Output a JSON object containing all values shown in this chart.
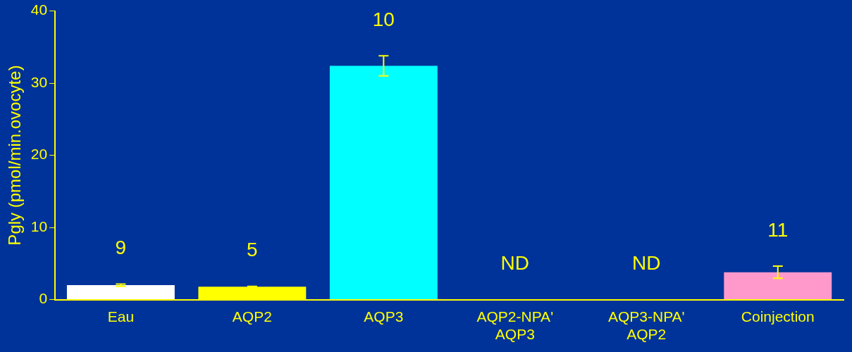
{
  "chart_data": {
    "type": "bar",
    "ylabel": "Pgly (pmol/min.ovocyte)",
    "categories": [
      "Eau",
      "AQP2",
      "AQP3",
      "AQP2-NPA'\nAQP3",
      "AQP3-NPA'\nAQP2",
      "Coinjection"
    ],
    "values": [
      2.0,
      1.8,
      32.4,
      null,
      null,
      3.8
    ],
    "errors": [
      0.15,
      0.05,
      1.4,
      null,
      null,
      0.85
    ],
    "colors": [
      "#ffffff",
      "#ffff00",
      "#00ffff",
      "#00ffff",
      "#00ffff",
      "#ff99cc"
    ],
    "annotations": [
      "9",
      "5",
      "10",
      "ND",
      "ND",
      "11"
    ],
    "ylim": [
      0,
      40
    ],
    "yticks": [
      0,
      10,
      20,
      30,
      40
    ],
    "grid": false,
    "legend": false
  }
}
